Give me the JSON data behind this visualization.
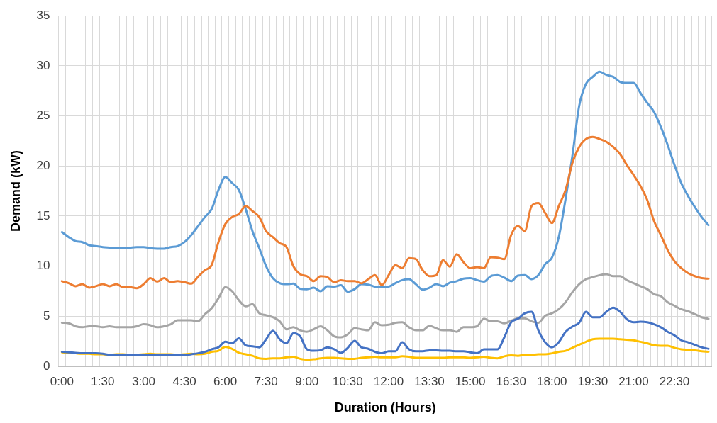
{
  "chart_data": {
    "type": "line",
    "xlabel": "Duration (Hours)",
    "ylabel": "Demand (kW)",
    "categories": [
      "0:00",
      null,
      null,
      null,
      null,
      null,
      "1:30",
      null,
      null,
      null,
      null,
      null,
      "3:00",
      null,
      null,
      null,
      null,
      null,
      "4:30",
      null,
      null,
      null,
      null,
      null,
      "6:00",
      null,
      null,
      null,
      null,
      null,
      "7:30",
      null,
      null,
      null,
      null,
      null,
      "9:00",
      null,
      null,
      null,
      null,
      null,
      "10:30",
      null,
      null,
      null,
      null,
      null,
      "12:00",
      null,
      null,
      null,
      null,
      null,
      "13:30",
      null,
      null,
      null,
      null,
      null,
      "15:00",
      null,
      null,
      null,
      null,
      null,
      "16:30",
      null,
      null,
      null,
      null,
      null,
      "18:00",
      null,
      null,
      null,
      null,
      null,
      "19:30",
      null,
      null,
      null,
      null,
      null,
      "21:00",
      null,
      null,
      null,
      null,
      null,
      "22:30",
      null,
      null,
      null,
      null,
      null
    ],
    "series": [
      {
        "color": "#5b9bd5",
        "values": [
          13.4,
          12.9,
          12.5,
          12.4,
          12.1,
          12.0,
          11.9,
          11.85,
          11.8,
          11.8,
          11.85,
          11.9,
          11.9,
          11.8,
          11.75,
          11.75,
          11.9,
          12.0,
          12.4,
          13.1,
          14.0,
          14.9,
          15.7,
          17.6,
          18.9,
          18.3,
          17.6,
          15.7,
          13.5,
          11.8,
          10.0,
          8.8,
          8.3,
          8.2,
          8.25,
          7.75,
          7.7,
          7.85,
          7.5,
          8.0,
          7.95,
          8.1,
          7.45,
          7.7,
          8.2,
          8.15,
          7.95,
          7.9,
          7.95,
          8.3,
          8.6,
          8.7,
          8.2,
          7.65,
          7.85,
          8.2,
          8.0,
          8.35,
          8.5,
          8.75,
          8.8,
          8.6,
          8.45,
          9.0,
          9.1,
          8.85,
          8.5,
          9.05,
          9.1,
          8.7,
          9.1,
          10.2,
          10.85,
          12.9,
          16.7,
          21.0,
          26.0,
          28.2,
          28.9,
          29.4,
          29.1,
          28.9,
          28.4,
          28.3,
          28.3,
          27.3,
          26.3,
          25.4,
          23.9,
          22.1,
          20.1,
          18.3,
          17.0,
          15.9,
          14.9,
          14.1
        ]
      },
      {
        "color": "#ed7d31",
        "values": [
          8.5,
          8.3,
          8.0,
          8.2,
          7.85,
          8.0,
          8.2,
          8.0,
          8.2,
          7.9,
          7.9,
          7.8,
          8.2,
          8.8,
          8.45,
          8.8,
          8.4,
          8.5,
          8.4,
          8.25,
          8.95,
          9.6,
          10.1,
          12.4,
          14.2,
          14.9,
          15.2,
          16.0,
          15.5,
          14.9,
          13.5,
          12.9,
          12.3,
          11.9,
          10.0,
          9.2,
          9.0,
          8.5,
          9.0,
          8.9,
          8.4,
          8.6,
          8.5,
          8.5,
          8.3,
          8.7,
          9.1,
          8.1,
          9.1,
          10.1,
          9.8,
          10.8,
          10.7,
          9.6,
          9.0,
          9.1,
          10.6,
          9.95,
          11.2,
          10.4,
          9.8,
          9.9,
          9.8,
          10.9,
          10.85,
          10.7,
          13.1,
          14.0,
          13.5,
          16.0,
          16.3,
          15.3,
          14.3,
          16.0,
          17.6,
          20.3,
          21.9,
          22.7,
          22.9,
          22.7,
          22.4,
          21.9,
          21.2,
          20.1,
          19.1,
          18.0,
          16.6,
          14.5,
          13.1,
          11.6,
          10.5,
          9.8,
          9.3,
          9.0,
          8.8,
          8.75
        ]
      },
      {
        "color": "#a5a5a5",
        "values": [
          4.35,
          4.3,
          4.0,
          3.9,
          4.0,
          4.0,
          3.9,
          4.0,
          3.9,
          3.9,
          3.9,
          4.0,
          4.2,
          4.1,
          3.9,
          4.0,
          4.2,
          4.6,
          4.6,
          4.6,
          4.5,
          5.2,
          5.8,
          6.8,
          7.9,
          7.5,
          6.6,
          6.0,
          6.2,
          5.3,
          5.1,
          4.9,
          4.5,
          3.7,
          3.9,
          3.6,
          3.45,
          3.7,
          4.0,
          3.6,
          3.0,
          2.9,
          3.2,
          3.8,
          3.7,
          3.6,
          4.4,
          4.1,
          4.15,
          4.35,
          4.4,
          3.9,
          3.6,
          3.6,
          4.05,
          3.8,
          3.6,
          3.6,
          3.45,
          3.9,
          3.9,
          4.0,
          4.75,
          4.5,
          4.5,
          4.3,
          4.55,
          4.8,
          4.8,
          4.5,
          4.35,
          5.05,
          5.3,
          5.7,
          6.4,
          7.4,
          8.2,
          8.7,
          8.9,
          9.1,
          9.2,
          9.0,
          9.0,
          8.6,
          8.3,
          8.0,
          7.7,
          7.2,
          7.0,
          6.4,
          6.05,
          5.7,
          5.5,
          5.2,
          4.9,
          4.75
        ]
      },
      {
        "color": "#ffc000",
        "values": [
          1.4,
          1.35,
          1.3,
          1.25,
          1.25,
          1.2,
          1.2,
          1.15,
          1.2,
          1.2,
          1.15,
          1.15,
          1.2,
          1.25,
          1.2,
          1.2,
          1.2,
          1.15,
          1.2,
          1.25,
          1.2,
          1.25,
          1.45,
          1.55,
          1.95,
          1.75,
          1.35,
          1.2,
          1.05,
          0.8,
          0.75,
          0.8,
          0.8,
          0.9,
          0.95,
          0.75,
          0.65,
          0.7,
          0.8,
          0.85,
          0.85,
          0.8,
          0.75,
          0.75,
          0.85,
          0.9,
          0.95,
          0.9,
          0.9,
          0.9,
          1.0,
          0.95,
          0.85,
          0.85,
          0.85,
          0.85,
          0.85,
          0.9,
          0.9,
          0.9,
          0.85,
          0.9,
          0.95,
          0.85,
          0.8,
          1.0,
          1.1,
          1.05,
          1.15,
          1.15,
          1.2,
          1.2,
          1.3,
          1.45,
          1.55,
          1.85,
          2.15,
          2.45,
          2.7,
          2.75,
          2.75,
          2.75,
          2.7,
          2.65,
          2.6,
          2.45,
          2.3,
          2.1,
          2.05,
          2.05,
          1.85,
          1.7,
          1.65,
          1.6,
          1.5,
          1.45
        ]
      },
      {
        "color": "#4472c4",
        "values": [
          1.45,
          1.4,
          1.35,
          1.3,
          1.3,
          1.3,
          1.25,
          1.15,
          1.15,
          1.15,
          1.1,
          1.1,
          1.1,
          1.15,
          1.15,
          1.15,
          1.15,
          1.15,
          1.1,
          1.2,
          1.3,
          1.45,
          1.7,
          1.9,
          2.45,
          2.3,
          2.8,
          2.1,
          2.0,
          1.9,
          2.7,
          3.55,
          2.7,
          2.3,
          3.3,
          3.0,
          1.7,
          1.55,
          1.6,
          1.9,
          1.7,
          1.35,
          1.85,
          2.55,
          1.9,
          1.75,
          1.45,
          1.3,
          1.5,
          1.5,
          2.4,
          1.7,
          1.5,
          1.5,
          1.6,
          1.6,
          1.55,
          1.55,
          1.5,
          1.5,
          1.4,
          1.3,
          1.7,
          1.7,
          1.7,
          2.9,
          4.4,
          4.75,
          5.3,
          5.45,
          3.6,
          2.4,
          1.9,
          2.4,
          3.45,
          3.97,
          4.35,
          5.45,
          4.9,
          4.9,
          5.45,
          5.85,
          5.45,
          4.7,
          4.4,
          4.45,
          4.4,
          4.2,
          3.9,
          3.45,
          3.1,
          2.6,
          2.4,
          2.15,
          1.9,
          1.75
        ]
      }
    ],
    "ylim": [
      0,
      35
    ],
    "yticks": [
      0,
      5,
      10,
      15,
      20,
      25,
      30,
      35
    ],
    "grid": true,
    "legend": false,
    "marker": "none",
    "line_style": "solid"
  }
}
